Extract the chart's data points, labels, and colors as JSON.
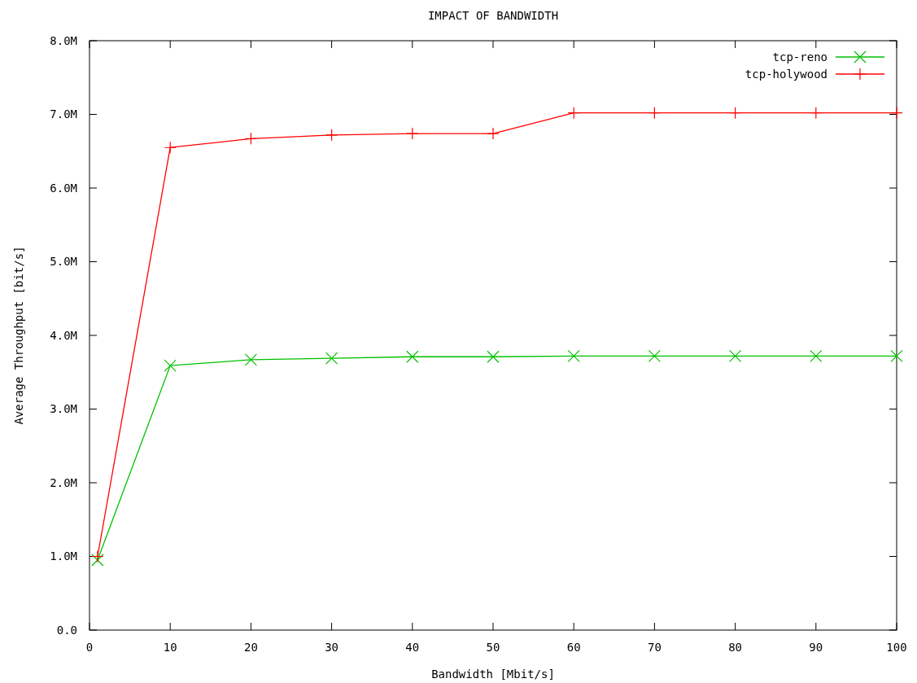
{
  "chart_data": {
    "type": "line",
    "title": "IMPACT OF BANDWIDTH",
    "xlabel": "Bandwidth [Mbit/s]",
    "ylabel": "Average Throughput [bit/s]",
    "x": [
      1,
      10,
      20,
      30,
      40,
      50,
      60,
      70,
      80,
      90,
      100
    ],
    "series": [
      {
        "name": "tcp-reno",
        "color": "#00c000",
        "marker": "cross",
        "values": [
          950000,
          3590000,
          3670000,
          3690000,
          3710000,
          3710000,
          3720000,
          3720000,
          3720000,
          3720000,
          3720000
        ]
      },
      {
        "name": "tcp-holywood",
        "color": "#ff0000",
        "marker": "plus",
        "values": [
          1000000,
          6550000,
          6670000,
          6720000,
          6740000,
          6740000,
          7020000,
          7020000,
          7020000,
          7020000,
          7020000
        ]
      }
    ],
    "xlim": [
      0,
      100
    ],
    "xticks": [
      0,
      10,
      20,
      30,
      40,
      50,
      60,
      70,
      80,
      90,
      100
    ],
    "ylim": [
      0,
      8000000
    ],
    "yticks": [
      {
        "value": 0,
        "label": "0.0"
      },
      {
        "value": 1000000,
        "label": "1.0M"
      },
      {
        "value": 2000000,
        "label": "2.0M"
      },
      {
        "value": 3000000,
        "label": "3.0M"
      },
      {
        "value": 4000000,
        "label": "4.0M"
      },
      {
        "value": 5000000,
        "label": "5.0M"
      },
      {
        "value": 6000000,
        "label": "6.0M"
      },
      {
        "value": 7000000,
        "label": "7.0M"
      },
      {
        "value": 8000000,
        "label": "8.0M"
      }
    ],
    "grid": false,
    "legend": "top right",
    "line_style": "solid"
  }
}
